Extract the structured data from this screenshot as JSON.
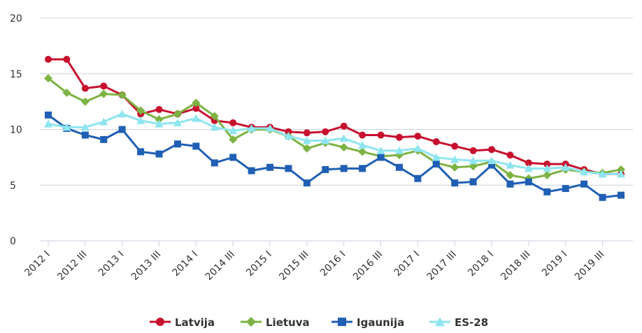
{
  "chart_data": {
    "type": "line",
    "title": "",
    "xlabel": "",
    "ylabel": "",
    "ylim": [
      0,
      20
    ],
    "yticks": [
      0,
      5,
      10,
      15,
      20
    ],
    "grid": true,
    "legend_position": "bottom",
    "x": [
      "2012 I",
      "2012 II",
      "2012 III",
      "2012 IV",
      "2013 I",
      "2013 II",
      "2013 III",
      "2013 IV",
      "2014 I",
      "2014 II",
      "2014 III",
      "2014 IV",
      "2015 I",
      "2015 II",
      "2015 III",
      "2015 IV",
      "2016 I",
      "2016 II",
      "2016 III",
      "2016 IV",
      "2017 I",
      "2017 II",
      "2017 III",
      "2017 IV",
      "2018 I",
      "2018 II",
      "2018 III",
      "2018 IV",
      "2019 I",
      "2019 II",
      "2019 III",
      "2019 IV"
    ],
    "xtick_labels": [
      "2012 I",
      "2012 III",
      "2013 I",
      "2013 III",
      "2014 I",
      "2014 III",
      "2015 I",
      "2015 III",
      "2016 I",
      "2016 III",
      "2017 I",
      "2017 III",
      "2018 I",
      "2018 III",
      "2019 I",
      "2019 III"
    ],
    "series": [
      {
        "name": "Latvija",
        "color": "#c8102e",
        "marker": "circle",
        "values": [
          16.3,
          16.3,
          13.7,
          13.9,
          13.1,
          11.4,
          11.8,
          11.4,
          11.9,
          10.8,
          10.6,
          10.2,
          10.2,
          9.8,
          9.7,
          9.8,
          10.3,
          9.5,
          9.5,
          9.3,
          9.4,
          8.9,
          8.5,
          8.1,
          8.2,
          7.7,
          7.0,
          6.9,
          6.9,
          6.4,
          6.0,
          6.0
        ]
      },
      {
        "name": "Lietuva",
        "color": "#7cb342",
        "marker": "diamond",
        "values": [
          14.6,
          13.3,
          12.5,
          13.2,
          13.1,
          11.7,
          10.9,
          11.4,
          12.4,
          11.2,
          9.1,
          10.0,
          10.0,
          9.4,
          8.3,
          8.8,
          8.4,
          8.0,
          7.6,
          7.7,
          8.1,
          7.0,
          6.6,
          6.7,
          7.1,
          5.9,
          5.6,
          5.9,
          6.4,
          6.2,
          6.1,
          6.4
        ]
      },
      {
        "name": "Igaunija",
        "color": "#1f5fb4",
        "marker": "square",
        "values": [
          11.3,
          10.1,
          9.5,
          9.1,
          10.0,
          8.0,
          7.8,
          8.7,
          8.5,
          7.0,
          7.5,
          6.3,
          6.6,
          6.5,
          5.2,
          6.4,
          6.5,
          6.5,
          7.5,
          6.6,
          5.6,
          6.9,
          5.2,
          5.3,
          6.8,
          5.1,
          5.3,
          4.4,
          4.7,
          5.1,
          3.9,
          4.1
        ]
      },
      {
        "name": "ES-28",
        "color": "#8ee5f0",
        "marker": "triangle",
        "values": [
          10.5,
          10.2,
          10.2,
          10.7,
          11.4,
          10.8,
          10.5,
          10.6,
          11.0,
          10.2,
          9.9,
          10.1,
          10.1,
          9.4,
          9.0,
          9.0,
          9.2,
          8.6,
          8.1,
          8.1,
          8.3,
          7.5,
          7.3,
          7.2,
          7.2,
          6.8,
          6.5,
          6.5,
          6.6,
          6.2,
          6.0,
          6.0
        ]
      }
    ]
  }
}
